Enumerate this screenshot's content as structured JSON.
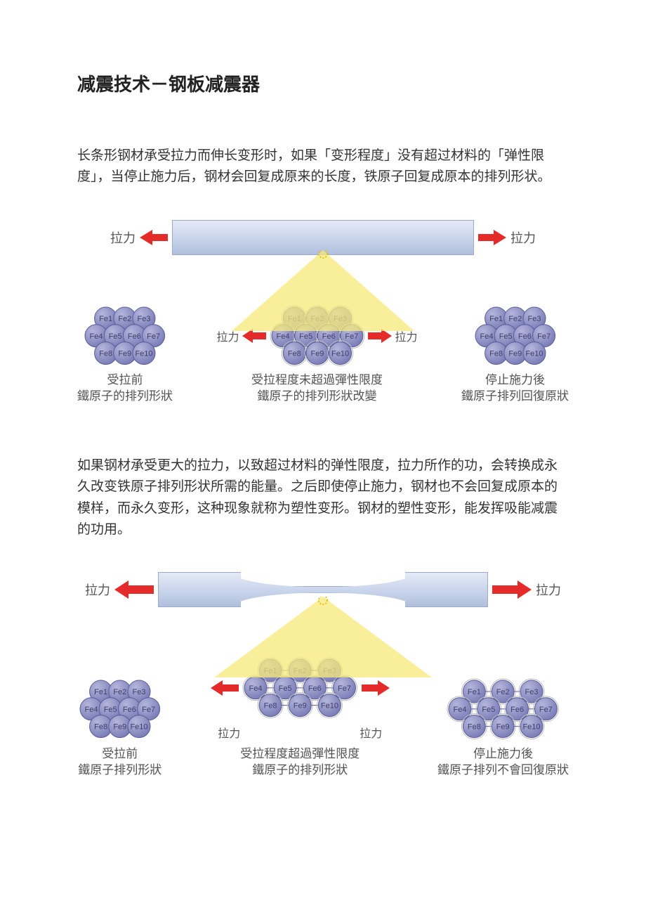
{
  "title": "减震技术－钢板减震器",
  "paragraph1": "长条形钢材承受拉力而伸长变形时，如果「变形程度」没有超过材料的「弹性限度」，当停止施力后，钢材会回复成原来的长度，铁原子回复成原本的排列形状。",
  "paragraph2": "如果钢材承受更大的拉力，以致超过材料的弹性限度，拉力所作的功，会转换成永久改变铁原子排列形状所需的能量。之后即使停止施力，钢材也不会回复成原本的模样，而永久变形，这种现象就称为塑性变形。钢材的塑性变形，能发挥吸能减震的功用。",
  "labels": {
    "force": "拉力"
  },
  "atoms": {
    "labels": [
      "Fe1",
      "Fe2",
      "Fe3",
      "Fe4",
      "Fe5",
      "Fe6",
      "Fe7",
      "Fe8",
      "Fe9",
      "Fe10"
    ],
    "fill_light": "#b5b6dc",
    "fill_dark": "#7c7fb8",
    "stroke": "#5a5d99",
    "text_color": "#3e3e6a",
    "radius": 16
  },
  "colors": {
    "arrow": "#e52a2a",
    "bar_fill_top": "#e5eaf6",
    "bar_fill_bottom": "#b0bfdd",
    "bar_stroke": "#9aa9cc",
    "cone_fill": "#f7e97a",
    "cone_opacity": 0.75,
    "text": "#525252",
    "bg": "#ffffff"
  },
  "diagram1": {
    "bar_shape": "rectangular",
    "captions": {
      "left": "受拉前\n鐵原子的排列形狀",
      "mid": "受拉程度未超過彈性限度\n鐵原子的排列形狀改變",
      "right": "停止施力後\n鐵原子排列回復原狀"
    },
    "mid_stretch": 1.2,
    "right_stretch": 1.0
  },
  "diagram2": {
    "bar_shape": "necked",
    "captions": {
      "left": "受拉前\n鐵原子排列形狀",
      "mid": "受拉程度超過彈性限度\n鐵原子的排列形狀",
      "right": "停止施力後\n鐵原子排列不會回復原狀"
    },
    "mid_stretch": 1.55,
    "right_stretch": 1.5
  }
}
